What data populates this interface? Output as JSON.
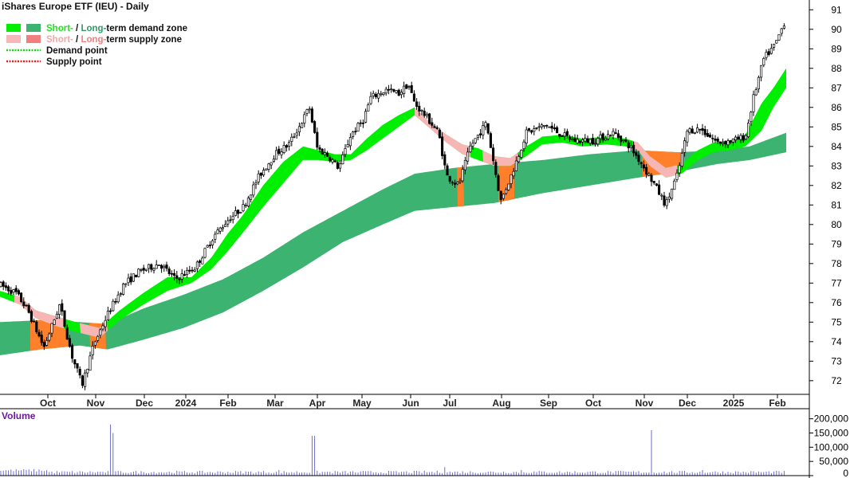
{
  "chart_data": {
    "type": "candlestick",
    "title": "iShares Europe ETF (IEU) - Daily",
    "legend": {
      "placement": "top-left",
      "items": [
        {
          "parts": [
            {
              "text": "Short-",
              "color": "#19e619"
            },
            {
              "text": " / ",
              "color": "#111111"
            },
            {
              "text": "Long-",
              "color": "#2e9e66"
            },
            {
              "text": "term demand zone",
              "color": "#111111"
            }
          ],
          "swatches": [
            "#00ee00",
            "#3cb371"
          ]
        },
        {
          "parts": [
            {
              "text": "Short-",
              "color": "#f4a6a6"
            },
            {
              "text": " / ",
              "color": "#111111"
            },
            {
              "text": "Long-",
              "color": "#f08080"
            },
            {
              "text": "term supply zone",
              "color": "#111111"
            }
          ],
          "swatches": [
            "#f5b7b7",
            "#f07f7f"
          ]
        },
        {
          "parts": [
            {
              "text": "Demand point",
              "color": "#111111"
            }
          ],
          "dotted": "#22cc22"
        },
        {
          "parts": [
            {
              "text": "Supply point",
              "color": "#111111"
            }
          ],
          "dotted": "#dd2222"
        }
      ]
    },
    "x_labels": [
      "Oct",
      "Nov",
      "Dec",
      "2024",
      "Feb",
      "Mar",
      "Apr",
      "May",
      "Jun",
      "Jul",
      "Aug",
      "Sep",
      "Oct",
      "Nov",
      "Dec",
      "2025",
      "Feb"
    ],
    "y_ticks": [
      72,
      73,
      74,
      75,
      76,
      77,
      78,
      79,
      80,
      81,
      82,
      83,
      84,
      85,
      86,
      87,
      88,
      89,
      90,
      91
    ],
    "ylim": [
      71.3,
      91.5
    ],
    "volume_title": "Volume",
    "volume_ticks": [
      "200,000",
      "150,000",
      "100,000",
      "50,000",
      "0"
    ],
    "volume_tick_values": [
      200000,
      150000,
      100000,
      50000,
      0
    ],
    "volume_ylim": [
      0,
      230000
    ],
    "colors": {
      "short_demand": "#00ee00",
      "long_demand": "#3cb371",
      "short_supply": "#f7b5b5",
      "long_supply": "#ff7f2a",
      "candle": "#000000",
      "volume": "#5b5bd6",
      "grid": "#000000"
    },
    "price_path": [
      [
        0,
        76.9
      ],
      [
        20,
        76.5
      ],
      [
        35,
        75.6
      ],
      [
        55,
        73.7
      ],
      [
        75,
        75.9
      ],
      [
        90,
        73.3
      ],
      [
        103,
        71.8
      ],
      [
        118,
        73.9
      ],
      [
        135,
        75.4
      ],
      [
        155,
        76.9
      ],
      [
        175,
        77.6
      ],
      [
        200,
        78.0
      ],
      [
        220,
        77.2
      ],
      [
        245,
        77.8
      ],
      [
        268,
        79.4
      ],
      [
        285,
        80.2
      ],
      [
        305,
        80.9
      ],
      [
        325,
        82.5
      ],
      [
        345,
        83.6
      ],
      [
        362,
        84.1
      ],
      [
        375,
        85.0
      ],
      [
        388,
        86.0
      ],
      [
        398,
        83.9
      ],
      [
        412,
        83.5
      ],
      [
        425,
        82.9
      ],
      [
        440,
        84.6
      ],
      [
        455,
        85.3
      ],
      [
        465,
        86.5
      ],
      [
        485,
        86.9
      ],
      [
        500,
        86.7
      ],
      [
        512,
        87.2
      ],
      [
        520,
        86.2
      ],
      [
        535,
        85.5
      ],
      [
        550,
        84.7
      ],
      [
        560,
        82.5
      ],
      [
        575,
        82.0
      ],
      [
        590,
        84.0
      ],
      [
        610,
        85.2
      ],
      [
        628,
        81.2
      ],
      [
        642,
        82.6
      ],
      [
        660,
        84.7
      ],
      [
        685,
        85.1
      ],
      [
        700,
        84.7
      ],
      [
        720,
        84.3
      ],
      [
        745,
        84.3
      ],
      [
        770,
        84.7
      ],
      [
        790,
        84.0
      ],
      [
        805,
        83.1
      ],
      [
        820,
        82.1
      ],
      [
        835,
        81.0
      ],
      [
        850,
        82.6
      ],
      [
        862,
        84.8
      ],
      [
        878,
        84.9
      ],
      [
        900,
        84.2
      ],
      [
        920,
        84.3
      ],
      [
        935,
        84.5
      ],
      [
        945,
        86.5
      ],
      [
        958,
        88.5
      ],
      [
        972,
        89.2
      ],
      [
        986,
        90.6
      ]
    ],
    "short_upper": [
      [
        0,
        76.6
      ],
      [
        25,
        76.3
      ],
      [
        45,
        75.6
      ],
      [
        70,
        75.3
      ],
      [
        95,
        75.0
      ],
      [
        125,
        74.7
      ],
      [
        150,
        75.6
      ],
      [
        180,
        76.5
      ],
      [
        210,
        77.3
      ],
      [
        240,
        77.3
      ],
      [
        265,
        78.3
      ],
      [
        285,
        79.5
      ],
      [
        305,
        80.5
      ],
      [
        330,
        82.0
      ],
      [
        355,
        83.2
      ],
      [
        380,
        84.0
      ],
      [
        400,
        83.8
      ],
      [
        420,
        83.6
      ],
      [
        440,
        83.6
      ],
      [
        460,
        84.4
      ],
      [
        480,
        85.1
      ],
      [
        500,
        85.6
      ],
      [
        520,
        86.0
      ],
      [
        540,
        85.2
      ],
      [
        560,
        84.6
      ],
      [
        580,
        84.1
      ],
      [
        600,
        83.9
      ],
      [
        620,
        83.5
      ],
      [
        640,
        83.4
      ],
      [
        660,
        84.0
      ],
      [
        680,
        84.5
      ],
      [
        705,
        84.6
      ],
      [
        730,
        84.4
      ],
      [
        760,
        84.5
      ],
      [
        785,
        84.4
      ],
      [
        800,
        84.2
      ],
      [
        815,
        83.5
      ],
      [
        835,
        82.9
      ],
      [
        855,
        83.1
      ],
      [
        875,
        83.8
      ],
      [
        895,
        84.2
      ],
      [
        915,
        84.3
      ],
      [
        935,
        84.6
      ],
      [
        955,
        86.2
      ],
      [
        970,
        87.0
      ],
      [
        986,
        88.0
      ]
    ],
    "short_lower": [
      [
        0,
        76.3
      ],
      [
        25,
        75.9
      ],
      [
        45,
        75.2
      ],
      [
        70,
        74.8
      ],
      [
        95,
        74.5
      ],
      [
        125,
        74.2
      ],
      [
        150,
        75.1
      ],
      [
        180,
        75.9
      ],
      [
        210,
        76.6
      ],
      [
        240,
        77.0
      ],
      [
        265,
        77.7
      ],
      [
        285,
        78.6
      ],
      [
        305,
        79.6
      ],
      [
        330,
        80.9
      ],
      [
        355,
        82.1
      ],
      [
        380,
        83.3
      ],
      [
        400,
        83.3
      ],
      [
        420,
        83.2
      ],
      [
        440,
        83.3
      ],
      [
        460,
        83.8
      ],
      [
        480,
        84.4
      ],
      [
        500,
        85.0
      ],
      [
        520,
        85.6
      ],
      [
        540,
        84.9
      ],
      [
        560,
        84.2
      ],
      [
        580,
        83.6
      ],
      [
        600,
        83.3
      ],
      [
        620,
        83.0
      ],
      [
        640,
        83.0
      ],
      [
        660,
        83.5
      ],
      [
        680,
        84.1
      ],
      [
        705,
        84.2
      ],
      [
        730,
        84.0
      ],
      [
        760,
        84.1
      ],
      [
        785,
        84.0
      ],
      [
        800,
        83.8
      ],
      [
        815,
        83.0
      ],
      [
        835,
        82.4
      ],
      [
        855,
        82.6
      ],
      [
        875,
        83.3
      ],
      [
        895,
        83.7
      ],
      [
        915,
        83.8
      ],
      [
        935,
        84.0
      ],
      [
        955,
        84.8
      ],
      [
        970,
        86.0
      ],
      [
        986,
        87.0
      ]
    ],
    "long_upper": [
      [
        0,
        75.0
      ],
      [
        50,
        75.1
      ],
      [
        100,
        75.0
      ],
      [
        135,
        74.9
      ],
      [
        180,
        75.7
      ],
      [
        230,
        76.4
      ],
      [
        280,
        77.2
      ],
      [
        330,
        78.3
      ],
      [
        380,
        79.6
      ],
      [
        430,
        80.7
      ],
      [
        480,
        81.8
      ],
      [
        520,
        82.6
      ],
      [
        570,
        82.9
      ],
      [
        620,
        83.1
      ],
      [
        680,
        83.3
      ],
      [
        740,
        83.6
      ],
      [
        800,
        83.8
      ],
      [
        850,
        83.7
      ],
      [
        900,
        83.8
      ],
      [
        940,
        84.0
      ],
      [
        986,
        84.7
      ]
    ],
    "long_lower": [
      [
        0,
        73.3
      ],
      [
        50,
        73.6
      ],
      [
        100,
        73.8
      ],
      [
        135,
        73.6
      ],
      [
        180,
        74.1
      ],
      [
        230,
        74.7
      ],
      [
        280,
        75.5
      ],
      [
        330,
        76.6
      ],
      [
        380,
        77.8
      ],
      [
        430,
        79.1
      ],
      [
        480,
        80.0
      ],
      [
        520,
        80.7
      ],
      [
        570,
        80.9
      ],
      [
        620,
        81.1
      ],
      [
        680,
        81.6
      ],
      [
        740,
        82.0
      ],
      [
        800,
        82.4
      ],
      [
        850,
        82.7
      ],
      [
        900,
        83.1
      ],
      [
        940,
        83.3
      ],
      [
        986,
        83.7
      ]
    ],
    "long_supply_segments": [
      [
        38,
        78
      ],
      [
        70,
        86
      ],
      [
        112,
        133
      ],
      [
        573,
        582
      ],
      [
        625,
        645
      ],
      [
        805,
        858
      ]
    ],
    "short_supply_segments": [
      [
        18,
        80
      ],
      [
        100,
        135
      ],
      [
        520,
        590
      ],
      [
        605,
        650
      ],
      [
        795,
        850
      ]
    ],
    "volume_spikes": [
      [
        140,
        180000
      ],
      [
        142,
        150000
      ],
      [
        350,
        20000
      ],
      [
        393,
        140000
      ],
      [
        557,
        30000
      ],
      [
        654,
        20000
      ],
      [
        816,
        160000
      ],
      [
        880,
        20000
      ]
    ]
  }
}
